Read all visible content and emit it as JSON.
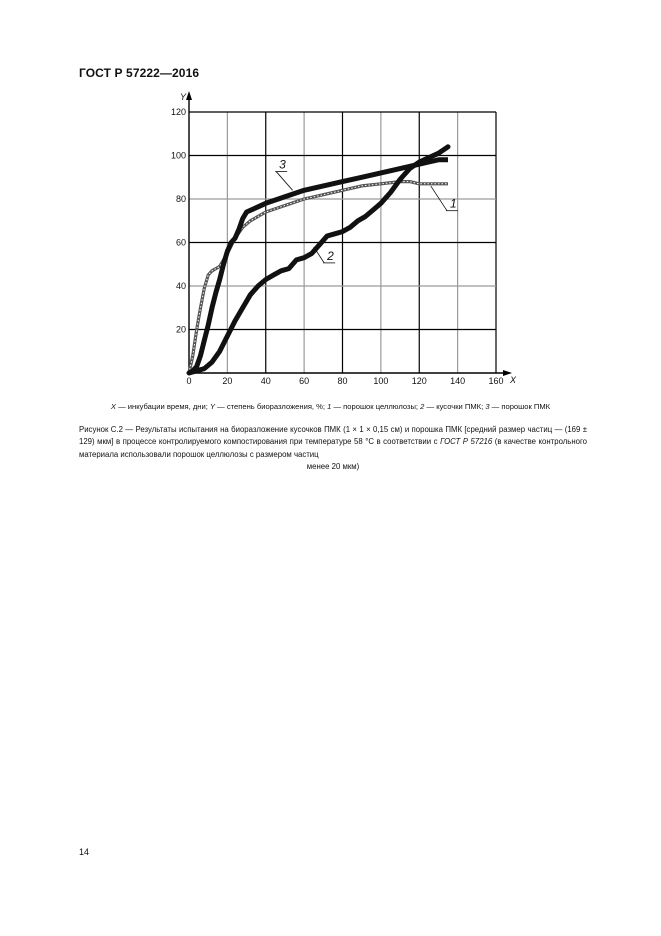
{
  "header": {
    "document_code": "ГОСТ Р 57222—2016"
  },
  "figure": {
    "legend": {
      "x_sym": "X",
      "x_desc": " — инкубации время, дни; ",
      "y_sym": "Y",
      "y_desc": " — степень биоразложения, %; ",
      "s1_sym": "1",
      "s1_desc": " — порошок целлюлозы; ",
      "s2_sym": "2",
      "s2_desc": " — кусочки ПМК; ",
      "s3_sym": "3",
      "s3_desc": " — порошок ПМК"
    },
    "caption": {
      "part1": "Рисунок С.2 — Результаты испытания на биоразложение кусочков ПМК (1 × 1 × 0,15 см) и порошка ПМК [средний размер частиц — (169 ± 129) мкм] в процессе контролируемого компостирования при температуре 58 °С в соответствии с ",
      "reference": "ГОСТ Р 57216",
      "part2": " (в качестве контрольного материала использовали порошок целлюлозы с размером частиц",
      "last_line": "менее 20 мкм)"
    }
  },
  "page_number": "14",
  "chart_data": {
    "type": "line",
    "title": "",
    "xlabel": "X",
    "ylabel": "Y",
    "xlim": [
      0,
      160
    ],
    "ylim": [
      0,
      120
    ],
    "x_ticks": [
      0,
      20,
      40,
      60,
      80,
      100,
      120,
      140,
      160
    ],
    "y_ticks": [
      0,
      20,
      40,
      60,
      80,
      100,
      120
    ],
    "x_tick_labels": [
      "0",
      "20",
      "40",
      "60",
      "80",
      "100",
      "120",
      "140",
      "160"
    ],
    "y_tick_labels": [
      "",
      "20",
      "40",
      "60",
      "80",
      "100",
      "120"
    ],
    "grid": true,
    "grid_colors": {
      "major": "#000000",
      "alt": "#9a9a9a"
    },
    "series": [
      {
        "name": "1",
        "label": "порошок целлюлозы",
        "style": "triangles",
        "x": [
          0,
          2,
          4,
          6,
          8,
          10,
          12,
          14,
          16,
          18,
          20,
          24,
          28,
          32,
          36,
          40,
          50,
          60,
          70,
          80,
          90,
          100,
          110,
          115,
          120,
          125,
          130,
          135
        ],
        "y": [
          0,
          8,
          20,
          30,
          39,
          45,
          47,
          48,
          49,
          52,
          55,
          62,
          67,
          70,
          72,
          74,
          77,
          80,
          82,
          84,
          86,
          87,
          88,
          88,
          87,
          87,
          87,
          87
        ]
      },
      {
        "name": "2",
        "label": "кусочки ПМК",
        "style": "thick",
        "x": [
          0,
          4,
          8,
          12,
          16,
          20,
          24,
          28,
          32,
          36,
          40,
          44,
          48,
          52,
          56,
          60,
          64,
          68,
          72,
          76,
          80,
          84,
          88,
          92,
          96,
          100,
          105,
          110,
          115,
          120,
          125,
          130,
          135
        ],
        "y": [
          0,
          1,
          2,
          5,
          10,
          17,
          24,
          30,
          36,
          40,
          43,
          45,
          47,
          48,
          52,
          53,
          55,
          59,
          63,
          64,
          65,
          67,
          70,
          72,
          75,
          78,
          83,
          89,
          94,
          97,
          99,
          101,
          104
        ]
      },
      {
        "name": "3",
        "label": "порошок ПМК",
        "style": "thick-dotted",
        "x": [
          0,
          2,
          4,
          6,
          8,
          10,
          12,
          14,
          16,
          18,
          20,
          22,
          24,
          26,
          28,
          30,
          35,
          40,
          50,
          60,
          70,
          80,
          90,
          100,
          110,
          120,
          125,
          130,
          135
        ],
        "y": [
          0,
          1,
          3,
          8,
          15,
          22,
          30,
          37,
          43,
          50,
          56,
          60,
          62,
          66,
          71,
          74,
          76,
          78,
          81,
          84,
          86,
          88,
          90,
          92,
          94,
          96,
          97,
          98,
          98
        ]
      }
    ],
    "annotations": [
      {
        "text": "1",
        "x": 136,
        "y": 76,
        "leader_to": [
          126,
          86
        ]
      },
      {
        "text": "2",
        "x": 72,
        "y": 52,
        "leader_to": [
          65,
          58
        ]
      },
      {
        "text": "3",
        "x": 47,
        "y": 94,
        "leader_to": [
          54,
          84
        ]
      }
    ]
  }
}
